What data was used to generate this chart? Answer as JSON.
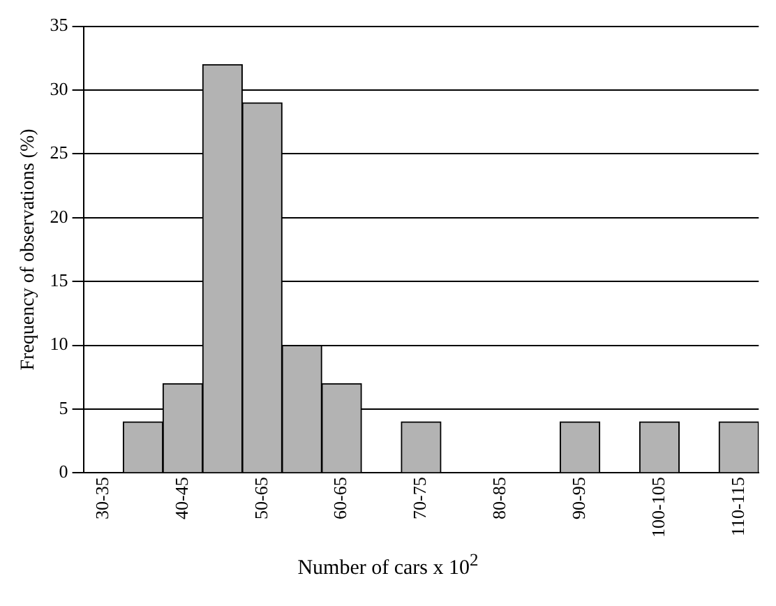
{
  "chart_data": {
    "type": "bar",
    "xlabel": "Number of cars x 10$^{2}$",
    "ylabel": "Frequency of observations (%)",
    "categories": [
      "30-35",
      null,
      "40-45",
      null,
      "50-65",
      null,
      "60-65",
      null,
      "70-75",
      null,
      "80-85",
      null,
      "90-95",
      null,
      "100-105",
      null,
      "110-115"
    ],
    "values": [
      0,
      4,
      7,
      32,
      29,
      10,
      7,
      0,
      4,
      0,
      0,
      0,
      4,
      0,
      4,
      0,
      4
    ],
    "color": "#b3b3b3",
    "ylim": [
      0,
      35
    ],
    "yticks": [
      0,
      5,
      10,
      15,
      20,
      25,
      30,
      35
    ],
    "grid": "y",
    "legend": false
  }
}
